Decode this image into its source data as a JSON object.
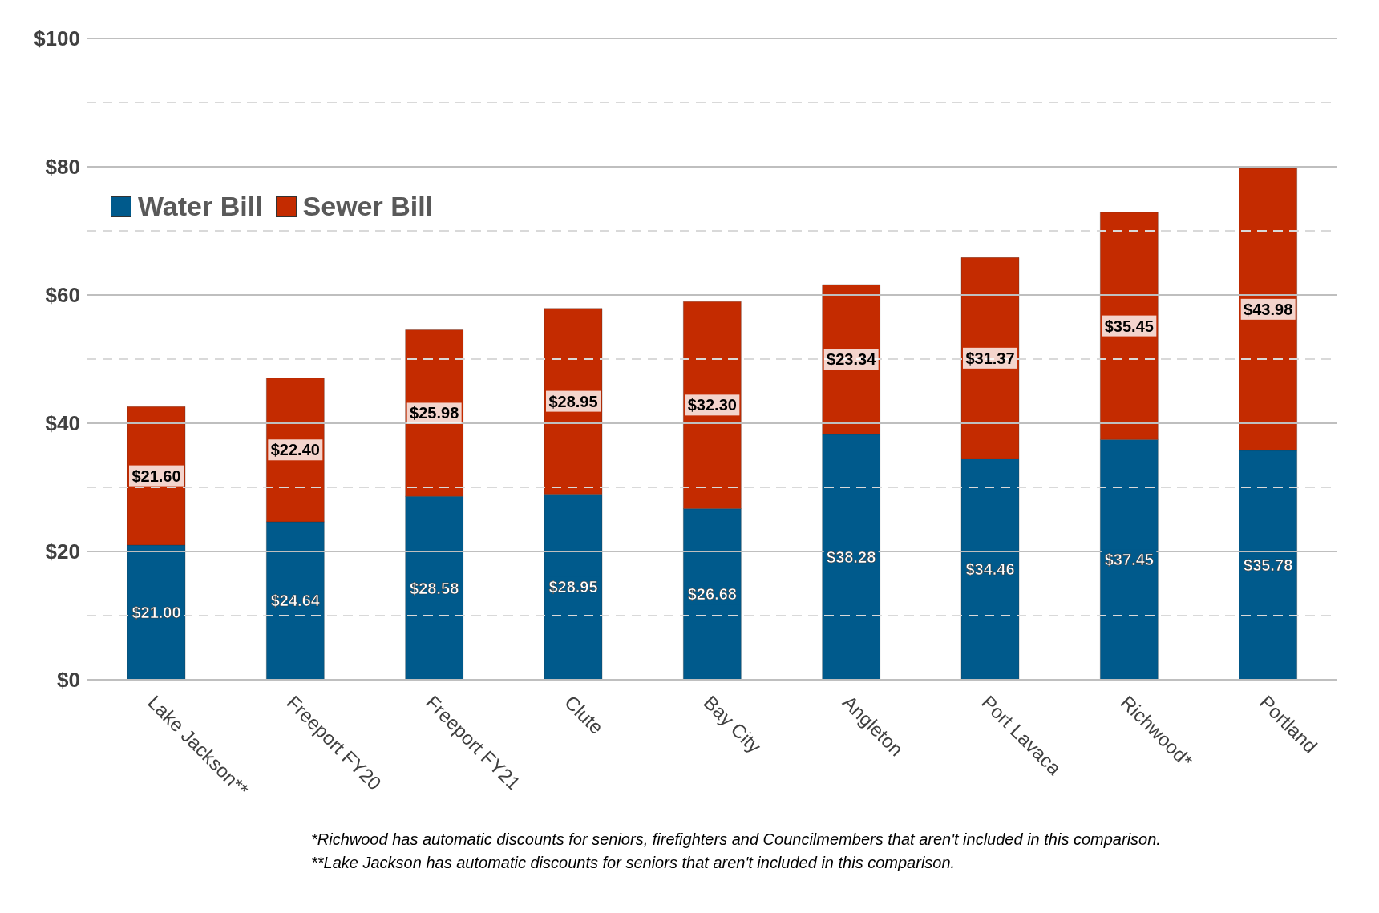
{
  "chart_data": {
    "type": "bar",
    "stacked": true,
    "categories": [
      "Lake Jackson**",
      "Freeport FY20",
      "Freeport FY21",
      "Clute",
      "Bay City",
      "Angleton",
      "Port Lavaca",
      "Richwood*",
      "Portland"
    ],
    "series": [
      {
        "name": "Water Bill",
        "color": "#005a8c",
        "values": [
          21.0,
          24.64,
          28.58,
          28.95,
          26.68,
          38.28,
          34.46,
          37.45,
          35.78
        ],
        "value_labels": [
          "$21.00",
          "$24.64",
          "$28.58",
          "$28.95",
          "$26.68",
          "$38.28",
          "$34.46",
          "$37.45",
          "$35.78"
        ]
      },
      {
        "name": "Sewer Bill",
        "color": "#c42b00",
        "values": [
          21.6,
          22.4,
          25.98,
          28.95,
          32.3,
          23.34,
          31.37,
          35.45,
          43.98
        ],
        "value_labels": [
          "$21.60",
          "$22.40",
          "$25.98",
          "$28.95",
          "$32.30",
          "$23.34",
          "$31.37",
          "$35.45",
          "$43.98"
        ]
      }
    ],
    "ylim": [
      0,
      100
    ],
    "yticks": [
      {
        "value": 0,
        "label": "$0"
      },
      {
        "value": 10,
        "label": null
      },
      {
        "value": 20,
        "label": "$20"
      },
      {
        "value": 30,
        "label": null
      },
      {
        "value": 40,
        "label": "$40"
      },
      {
        "value": 50,
        "label": null
      },
      {
        "value": 60,
        "label": "$60"
      },
      {
        "value": 70,
        "label": null
      },
      {
        "value": 80,
        "label": "$80"
      },
      {
        "value": 90,
        "label": null
      },
      {
        "value": 100,
        "label": "$100"
      }
    ],
    "grid": "y",
    "legend": "top left",
    "annotations": [
      "*Richwood has automatic discounts for seniors, firefighters and Councilmembers that aren't included in this comparison.",
      "**Lake Jackson has automatic discounts for seniors that aren't included in this comparison."
    ]
  }
}
